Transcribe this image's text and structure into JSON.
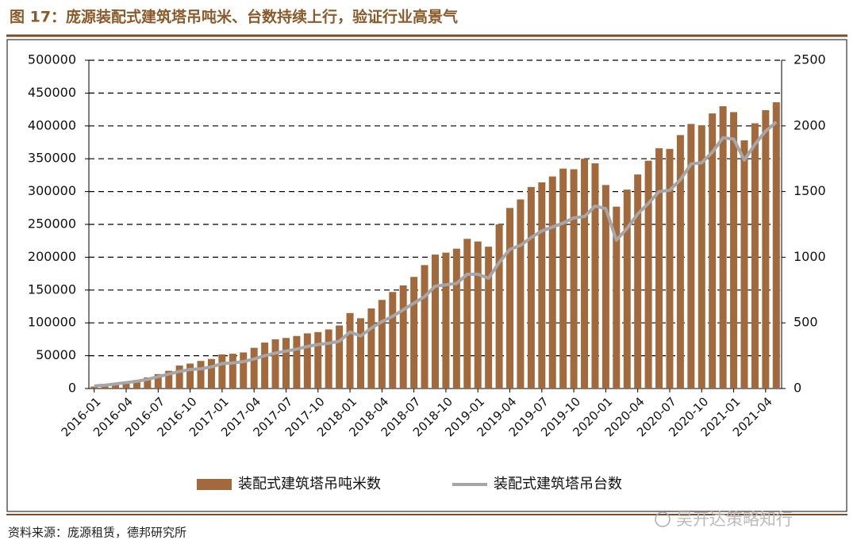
{
  "chart_data": {
    "type": "bar",
    "title": "图 17：庞源装配式建筑塔吊吨米、台数持续上行，验证行业高景气",
    "categories": [
      "2016-01",
      null,
      null,
      "2016-04",
      null,
      null,
      "2016-07",
      null,
      null,
      "2016-10",
      null,
      null,
      "2017-01",
      null,
      null,
      "2017-04",
      null,
      null,
      "2017-07",
      null,
      null,
      "2017-10",
      null,
      null,
      "2018-01",
      null,
      null,
      "2018-04",
      null,
      null,
      "2018-07",
      null,
      null,
      "2018-10",
      null,
      null,
      "2019-01",
      null,
      null,
      "2019-04",
      null,
      null,
      "2019-07",
      null,
      null,
      "2019-10",
      null,
      null,
      "2020-01",
      null,
      null,
      "2020-04",
      null,
      null,
      "2020-07",
      null,
      null,
      "2020-10",
      null,
      null,
      "2021-01",
      null,
      null,
      "2021-04",
      null
    ],
    "series": [
      {
        "name": "装配式建筑塔吊吨米数",
        "type": "bar",
        "color": "#a26a3c",
        "values": [
          3000,
          5000,
          8000,
          10000,
          13000,
          17000,
          22000,
          27000,
          35000,
          38000,
          42000,
          45000,
          52000,
          53000,
          55000,
          62000,
          70000,
          75000,
          77000,
          80000,
          84000,
          86000,
          90000,
          96000,
          115000,
          107000,
          122000,
          135000,
          147000,
          157000,
          170000,
          188000,
          204000,
          207000,
          213000,
          228000,
          224000,
          216000,
          250000,
          275000,
          288000,
          307000,
          314000,
          323000,
          335000,
          334000,
          350000,
          343000,
          310000,
          277000,
          303000,
          326000,
          347000,
          366000,
          365000,
          386000,
          403000,
          401000,
          419000,
          430000,
          421000,
          378000,
          404000,
          424000,
          436000
        ]
      },
      {
        "name": "装配式建筑塔吊台数",
        "type": "line",
        "axis": "y2",
        "color": "#a6a6a6",
        "values": [
          20,
          25,
          35,
          45,
          55,
          70,
          90,
          110,
          130,
          145,
          150,
          165,
          190,
          195,
          205,
          225,
          250,
          270,
          285,
          300,
          320,
          335,
          345,
          360,
          430,
          400,
          460,
          510,
          550,
          600,
          650,
          700,
          780,
          790,
          800,
          870,
          870,
          840,
          960,
          1060,
          1090,
          1150,
          1200,
          1230,
          1260,
          1300,
          1310,
          1390,
          1370,
          1130,
          1220,
          1330,
          1410,
          1500,
          1510,
          1590,
          1710,
          1720,
          1800,
          1910,
          1900,
          1740,
          1860,
          1960,
          2030
        ]
      }
    ],
    "ylim": [
      0,
      500000
    ],
    "yticks": [
      0,
      50000,
      100000,
      150000,
      200000,
      250000,
      300000,
      350000,
      400000,
      450000,
      500000
    ],
    "y2lim": [
      0,
      2500
    ],
    "y2ticks": [
      0,
      500,
      1000,
      1500,
      2000,
      2500
    ],
    "grid": true,
    "legend": "bottom"
  },
  "footer": {
    "source": "资料来源：庞源租赁，德邦研究所",
    "watermark": "吴开达策略知行"
  }
}
